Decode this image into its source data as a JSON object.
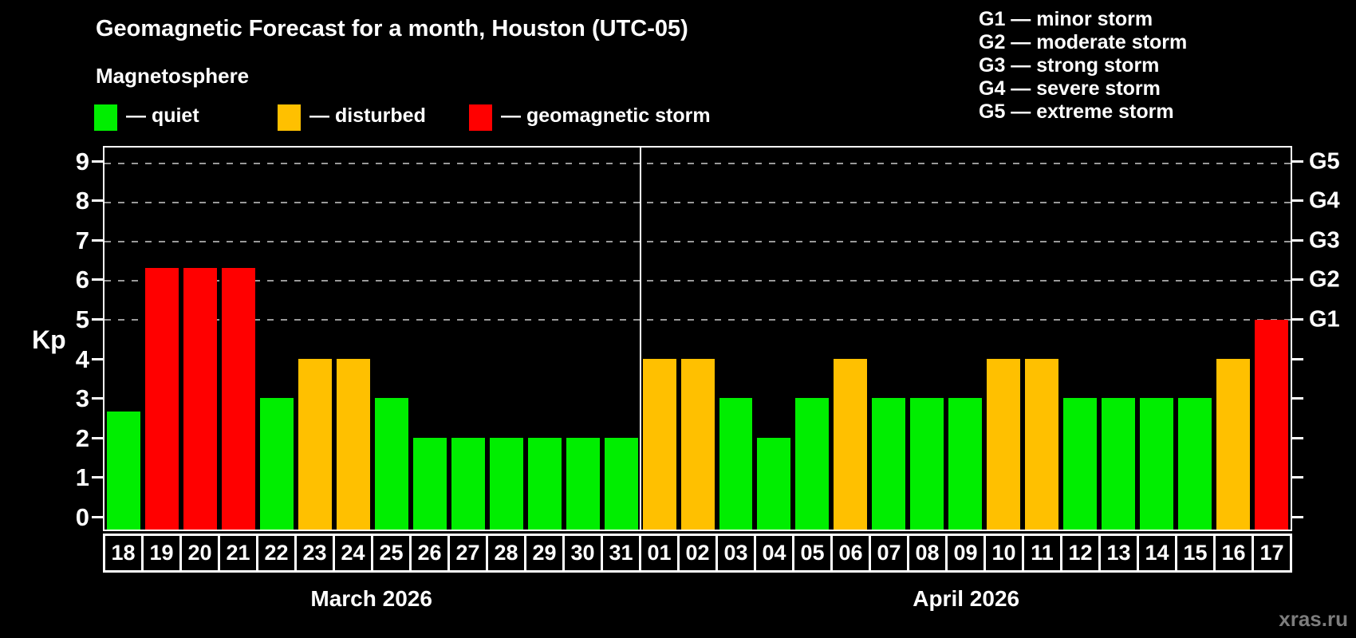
{
  "subtitle": "Magnetosphere",
  "watermark": "xras.ru",
  "colors": {
    "quiet": "#00ee00",
    "disturbed": "#ffc000",
    "storm": "#ff0000",
    "axis": "#ffffff",
    "grid": "#9a9a9a",
    "background": "#000000",
    "watermark": "#7d7d7d"
  },
  "legend": {
    "separator": "—",
    "items": [
      {
        "key": "quiet",
        "label": "quiet"
      },
      {
        "key": "disturbed",
        "label": "disturbed"
      },
      {
        "key": "storm",
        "label": "geomagnetic storm"
      }
    ]
  },
  "storm_scale": [
    {
      "code": "G1",
      "kp": 5,
      "label": "minor storm"
    },
    {
      "code": "G2",
      "kp": 6,
      "label": "moderate storm"
    },
    {
      "code": "G3",
      "kp": 7,
      "label": "strong storm"
    },
    {
      "code": "G4",
      "kp": 8,
      "label": "severe storm"
    },
    {
      "code": "G5",
      "kp": 9,
      "label": "extreme storm"
    }
  ],
  "chart_data": {
    "type": "bar",
    "title": "Geomagnetic Forecast for a month, Houston (UTC-05)",
    "ylabel": "Kp",
    "ylim": [
      0,
      9
    ],
    "yticks": [
      0,
      1,
      2,
      3,
      4,
      5,
      6,
      7,
      8,
      9
    ],
    "gridlines": [
      5,
      6,
      7,
      8,
      9
    ],
    "grid_style": "dashed",
    "legend_position": "top",
    "months": [
      {
        "label": "March 2026",
        "days": [
          {
            "day": "18",
            "kp": 2.67,
            "level": "quiet"
          },
          {
            "day": "19",
            "kp": 6.33,
            "level": "storm"
          },
          {
            "day": "20",
            "kp": 6.33,
            "level": "storm"
          },
          {
            "day": "21",
            "kp": 6.33,
            "level": "storm"
          },
          {
            "day": "22",
            "kp": 3,
            "level": "quiet"
          },
          {
            "day": "23",
            "kp": 4,
            "level": "disturbed"
          },
          {
            "day": "24",
            "kp": 4,
            "level": "disturbed"
          },
          {
            "day": "25",
            "kp": 3,
            "level": "quiet"
          },
          {
            "day": "26",
            "kp": 2,
            "level": "quiet"
          },
          {
            "day": "27",
            "kp": 2,
            "level": "quiet"
          },
          {
            "day": "28",
            "kp": 2,
            "level": "quiet"
          },
          {
            "day": "29",
            "kp": 2,
            "level": "quiet"
          },
          {
            "day": "30",
            "kp": 2,
            "level": "quiet"
          },
          {
            "day": "31",
            "kp": 2,
            "level": "quiet"
          }
        ]
      },
      {
        "label": "April 2026",
        "days": [
          {
            "day": "01",
            "kp": 4,
            "level": "disturbed"
          },
          {
            "day": "02",
            "kp": 4,
            "level": "disturbed"
          },
          {
            "day": "03",
            "kp": 3,
            "level": "quiet"
          },
          {
            "day": "04",
            "kp": 2,
            "level": "quiet"
          },
          {
            "day": "05",
            "kp": 3,
            "level": "quiet"
          },
          {
            "day": "06",
            "kp": 4,
            "level": "disturbed"
          },
          {
            "day": "07",
            "kp": 3,
            "level": "quiet"
          },
          {
            "day": "08",
            "kp": 3,
            "level": "quiet"
          },
          {
            "day": "09",
            "kp": 3,
            "level": "quiet"
          },
          {
            "day": "10",
            "kp": 4,
            "level": "disturbed"
          },
          {
            "day": "11",
            "kp": 4,
            "level": "disturbed"
          },
          {
            "day": "12",
            "kp": 3,
            "level": "quiet"
          },
          {
            "day": "13",
            "kp": 3,
            "level": "quiet"
          },
          {
            "day": "14",
            "kp": 3,
            "level": "quiet"
          },
          {
            "day": "15",
            "kp": 3,
            "level": "quiet"
          },
          {
            "day": "16",
            "kp": 4,
            "level": "disturbed"
          },
          {
            "day": "17",
            "kp": 5,
            "level": "storm"
          }
        ]
      }
    ]
  }
}
